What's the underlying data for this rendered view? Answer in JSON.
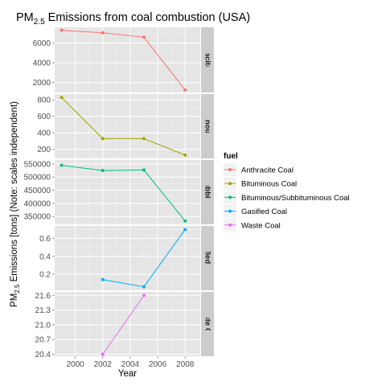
{
  "chart_data": {
    "type": "line",
    "title_main": "PM",
    "title_sub": "2.5",
    "title_rest": " Emissions from coal combustion (USA)",
    "xlabel": "Year",
    "ylabel_main": "PM",
    "ylabel_sub": "2.5",
    "ylabel_rest": "Emissions [tons] (Note: scales independent)",
    "xlim": [
      1998.5,
      2009.1
    ],
    "x_ticks": [
      2000,
      2002,
      2004,
      2006,
      2008
    ],
    "x_tick_labels": [
      "2000",
      "2002",
      "2004",
      "2006",
      "2008"
    ],
    "legend_title": "fuel",
    "legend_position": "right",
    "grid": true,
    "panels": [
      {
        "strip": "Anthracite Coal",
        "color": "#F8766D",
        "ylim": [
          1000,
          7600
        ],
        "y_ticks": [
          2000,
          4000,
          6000
        ],
        "y_tick_labels": [
          "2000",
          "4000",
          "6000"
        ],
        "x": [
          1999,
          2002,
          2005,
          2008
        ],
        "values": [
          7300,
          7050,
          6600,
          1250
        ]
      },
      {
        "strip": "Bituminous Coal",
        "color": "#A3A500",
        "ylim": [
          90,
          870
        ],
        "y_ticks": [
          200,
          400,
          600,
          800
        ],
        "y_tick_labels": [
          "200",
          "400",
          "600",
          "800"
        ],
        "x": [
          1999,
          2002,
          2005,
          2008
        ],
        "values": [
          830,
          330,
          330,
          130
        ]
      },
      {
        "strip": "Bituminous/Subbituminous Coal",
        "color": "#00BF7D",
        "ylim": [
          320000,
          565000
        ],
        "y_ticks": [
          350000,
          400000,
          450000,
          500000,
          550000
        ],
        "y_tick_labels": [
          "350000",
          "400000",
          "450000",
          "500000",
          "550000"
        ],
        "x": [
          1999,
          2002,
          2005,
          2008
        ],
        "values": [
          545000,
          525000,
          527000,
          333000
        ]
      },
      {
        "strip": "Gasified Coal",
        "color": "#00B0F6",
        "ylim": [
          0.02,
          0.74
        ],
        "y_ticks": [
          0.2,
          0.4,
          0.6
        ],
        "y_tick_labels": [
          "0.2",
          "0.4",
          "0.6"
        ],
        "x": [
          2002,
          2005,
          2008
        ],
        "values": [
          0.14,
          0.06,
          0.7
        ]
      },
      {
        "strip": "Waste Coal",
        "color": "#E76BF3",
        "ylim": [
          20.36,
          21.67
        ],
        "y_ticks": [
          20.4,
          20.7,
          21.0,
          21.3,
          21.6
        ],
        "y_tick_labels": [
          "20.4",
          "20.7",
          "21.0",
          "21.3",
          "21.6"
        ],
        "x": [
          2002,
          2005
        ],
        "values": [
          20.4,
          21.6
        ]
      }
    ],
    "legend": [
      {
        "label": "Anthracite Coal",
        "color": "#F8766D"
      },
      {
        "label": "Bituminous Coal",
        "color": "#A3A500"
      },
      {
        "label": "Bituminous/Subbituminous Coal",
        "color": "#00BF7D"
      },
      {
        "label": "Gasified Coal",
        "color": "#00B0F6"
      },
      {
        "label": "Waste Coal",
        "color": "#E76BF3"
      }
    ]
  }
}
